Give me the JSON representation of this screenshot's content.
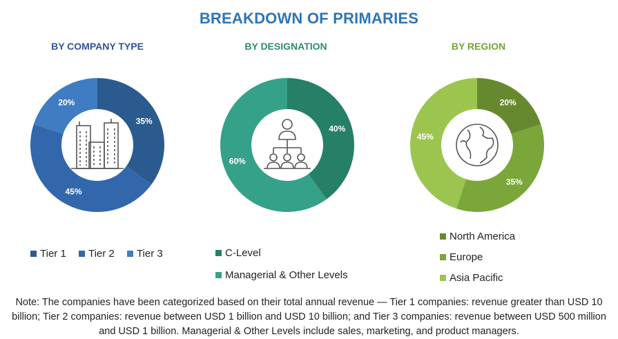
{
  "title": "BREAKDOWN OF PRIMARIES",
  "chart_data": [
    {
      "type": "pie",
      "title": "BY COMPANY TYPE",
      "title_color": "#2f5597",
      "categories": [
        "Tier 1",
        "Tier 2",
        "Tier 3"
      ],
      "values": [
        35,
        45,
        20
      ],
      "labels": [
        "35%",
        "45%",
        "20%"
      ],
      "colors": [
        "#2b5a8e",
        "#3367ab",
        "#3f7cc1"
      ],
      "legend": "bottom"
    },
    {
      "type": "pie",
      "title": "BY DESIGNATION",
      "title_color": "#2e8b73",
      "categories": [
        "C-Level",
        "Managerial & Other Levels"
      ],
      "values": [
        40,
        60
      ],
      "labels": [
        "40%",
        "60%"
      ],
      "colors": [
        "#267f67",
        "#35a188"
      ],
      "legend": "bottom"
    },
    {
      "type": "pie",
      "title": "BY REGION",
      "title_color": "#74a531",
      "categories": [
        "North America",
        "Europe",
        "Asia Pacific"
      ],
      "values": [
        20,
        35,
        45
      ],
      "labels": [
        "20%",
        "35%",
        "45%"
      ],
      "colors": [
        "#66892f",
        "#7aa63a",
        "#9cc54f"
      ],
      "legend": "bottom"
    }
  ],
  "icons": [
    "buildings-icon",
    "org-chart-people-icon",
    "globe-icon"
  ],
  "note": "Note: The companies have been categorized based on their total annual revenue — Tier 1 companies: revenue greater than USD 10 billion; Tier 2 companies: revenue between USD 1 billion and USD 10 billion; and Tier 3 companies: revenue between USD 500 million and USD 1 billion. Managerial & Other Levels include sales, marketing, and product managers."
}
